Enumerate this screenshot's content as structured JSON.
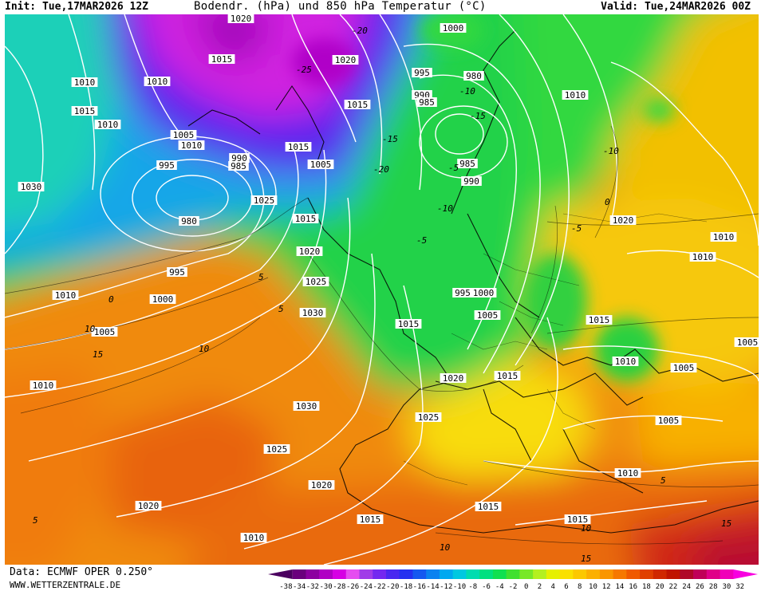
{
  "header": {
    "init": "Init: Tue,17MAR2026 12Z",
    "title": "Bodendr. (hPa) und 850 hPa Temperatur (°C)",
    "valid": "Valid: Tue,24MAR2026 00Z"
  },
  "footer": {
    "data_source": "Data: ECMWF OPER 0.250°",
    "website": "WWW.WETTERZENTRALE.DE"
  },
  "legend": {
    "labels": [
      "-38",
      "-34",
      "-32",
      "-30",
      "-28",
      "-26",
      "-24",
      "-22",
      "-20",
      "-18",
      "-16",
      "-14",
      "-12",
      "-10",
      "-8",
      "-6",
      "-4",
      "-2",
      "0",
      "2",
      "4",
      "6",
      "8",
      "10",
      "12",
      "14",
      "16",
      "18",
      "20",
      "22",
      "24",
      "26",
      "28",
      "30",
      "32"
    ],
    "colors": [
      "#4b0060",
      "#6a007d",
      "#8c00a0",
      "#b000c4",
      "#d600e4",
      "#e64cf0",
      "#a03ce8",
      "#7328f0",
      "#4a28f0",
      "#2430f0",
      "#1458f0",
      "#0a82f0",
      "#00a8f0",
      "#00c8e0",
      "#00dcb0",
      "#00e080",
      "#10e050",
      "#40e030",
      "#78e828",
      "#b4f020",
      "#e6f000",
      "#fae000",
      "#fcc800",
      "#fcb000",
      "#fa9600",
      "#f67800",
      "#f05a00",
      "#e04000",
      "#d02800",
      "#c01400",
      "#b00828",
      "#c00058",
      "#e00088",
      "#f000b8",
      "#f800e0"
    ]
  },
  "map": {
    "isobar_labels": [
      "1020",
      "1000",
      "1015",
      "1020",
      "1010",
      "1010",
      "1015",
      "995",
      "980",
      "1015",
      "1005",
      "1010",
      "990",
      "990",
      "985",
      "985",
      "1010",
      "995",
      "1015",
      "1005",
      "1030",
      "980",
      "1015",
      "985",
      "1020",
      "990",
      "1025",
      "995",
      "1000",
      "1005",
      "1020",
      "1000",
      "995",
      "1030",
      "1015",
      "1010",
      "1010",
      "1010",
      "1015",
      "1005",
      "1030",
      "1020",
      "1025",
      "1025",
      "1020",
      "1015",
      "1010",
      "1015",
      "1010",
      "1015",
      "1020",
      "1010",
      "1010",
      "1025",
      "1005",
      "1005",
      "1005",
      "1010",
      "1015"
    ],
    "temperature_labels": [
      "-20",
      "-25",
      "-20",
      "-15",
      "-5",
      "-10",
      "-15",
      "-10",
      "-5",
      "0",
      "5",
      "10",
      "15",
      "10",
      "5",
      "0",
      "-5",
      "-10",
      "5",
      "10",
      "15",
      "5",
      "10",
      "15"
    ]
  }
}
